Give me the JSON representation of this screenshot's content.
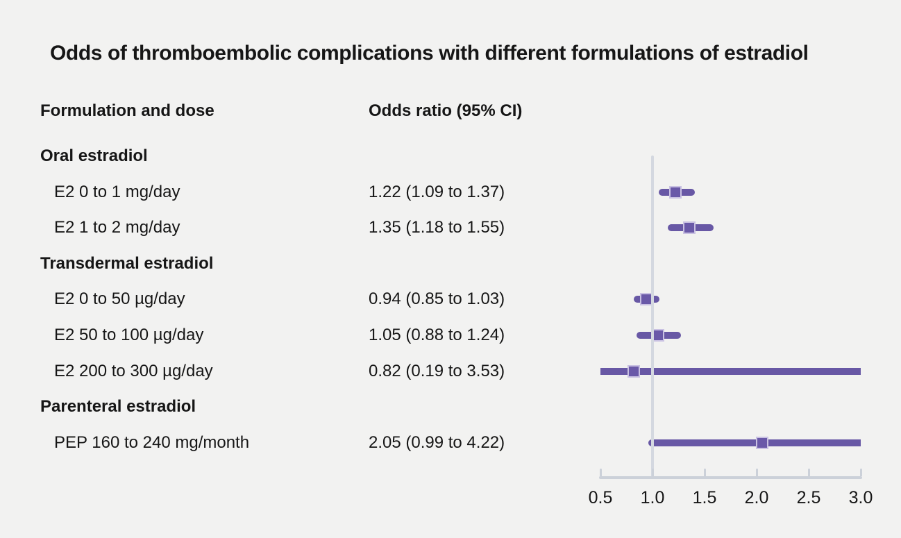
{
  "page": {
    "background": "#f2f2f1"
  },
  "chart_data": {
    "type": "scatter",
    "variant": "forest-plot",
    "title": "Odds of thromboembolic complications with different formulations of estradiol",
    "columns": [
      "Formulation and dose",
      "Odds ratio (95% CI)"
    ],
    "xlabel": "",
    "ylabel": "",
    "xlim": [
      0.5,
      3.0
    ],
    "x_ticks": [
      "0.5",
      "1.0",
      "1.5",
      "2.0",
      "2.5",
      "3.0"
    ],
    "x_tick_values": [
      0.5,
      1.0,
      1.5,
      2.0,
      2.5,
      3.0
    ],
    "reference_line_x": 1.0,
    "grid": false,
    "legend": false,
    "rows": [
      {
        "kind": "group",
        "label": "Oral estradiol"
      },
      {
        "kind": "item",
        "label": "E2 0 to 1 mg/day",
        "value_text": "1.22 (1.09 to 1.37)",
        "or": 1.22,
        "ci_low": 1.09,
        "ci_high": 1.37
      },
      {
        "kind": "item",
        "label": "E2 1 to 2 mg/day",
        "value_text": "1.35 (1.18 to 1.55)",
        "or": 1.35,
        "ci_low": 1.18,
        "ci_high": 1.55
      },
      {
        "kind": "group",
        "label": "Transdermal estradiol"
      },
      {
        "kind": "item",
        "label": "E2 0 to 50 µg/day",
        "value_text": "0.94 (0.85 to 1.03)",
        "or": 0.94,
        "ci_low": 0.85,
        "ci_high": 1.03
      },
      {
        "kind": "item",
        "label": "E2 50 to 100 µg/day",
        "value_text": "1.05 (0.88 to 1.24)",
        "or": 1.05,
        "ci_low": 0.88,
        "ci_high": 1.24
      },
      {
        "kind": "item",
        "label": "E2 200 to 300 µg/day",
        "value_text": "0.82 (0.19 to 3.53)",
        "or": 0.82,
        "ci_low": 0.19,
        "ci_high": 3.53
      },
      {
        "kind": "group",
        "label": "Parenteral estradiol"
      },
      {
        "kind": "item",
        "label": "PEP 160 to 240 mg/month",
        "value_text": "2.05 (0.99 to 4.22)",
        "or": 2.05,
        "ci_low": 0.99,
        "ci_high": 4.22
      }
    ],
    "colors": {
      "ci_bar": "#6858a5",
      "marker_fill": "#6a59a8",
      "marker_border": "#c9c1e2",
      "reference_line": "#d4d8e0",
      "axis": "#ccd1d9",
      "text": "#161616"
    }
  }
}
